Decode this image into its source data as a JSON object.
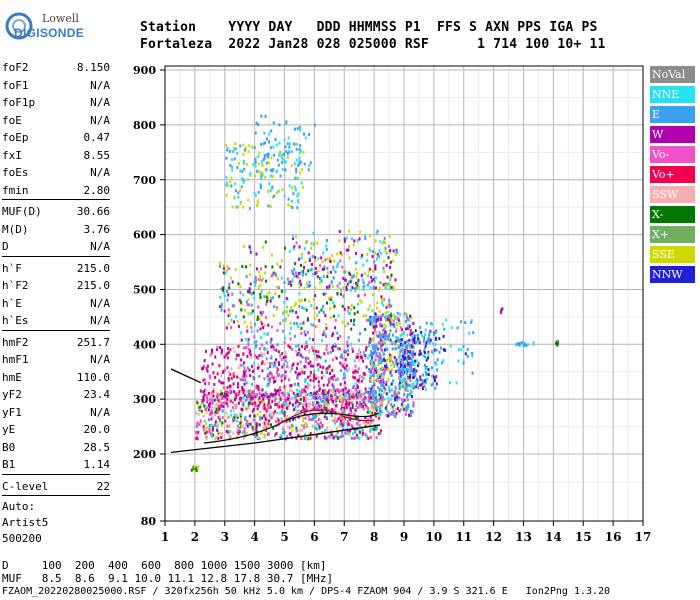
{
  "logo": {
    "line1": "Lowell",
    "line2": "DIGISONDE"
  },
  "header": {
    "line1": "Station    YYYY DAY   DDD HHMMSS P1  FFS S AXN PPS IGA PS",
    "line2": "Fortaleza  2022 Jan28 028 025000 RSF      1 714 100 10+ 11"
  },
  "params": {
    "g1": [
      [
        "foF2",
        "8.150"
      ],
      [
        "foF1",
        "N/A"
      ],
      [
        "foF1p",
        "N/A"
      ],
      [
        "foE",
        "N/A"
      ],
      [
        "foEp",
        "0.47"
      ],
      [
        "fxI",
        "8.55"
      ],
      [
        "foEs",
        "N/A"
      ],
      [
        "fmin",
        "2.80"
      ]
    ],
    "g2": [
      [
        "MUF(D)",
        "30.66"
      ],
      [
        "M(D)",
        "3.76"
      ],
      [
        "D",
        "N/A"
      ]
    ],
    "g3": [
      [
        "h`F",
        "215.0"
      ],
      [
        "h`F2",
        "215.0"
      ],
      [
        "h`E",
        "N/A"
      ],
      [
        "h`Es",
        "N/A"
      ]
    ],
    "g4": [
      [
        "hmF2",
        "251.7"
      ],
      [
        "hmF1",
        "N/A"
      ],
      [
        "hmE",
        "110.0"
      ],
      [
        "yF2",
        "23.4"
      ],
      [
        "yF1",
        "N/A"
      ],
      [
        "yE",
        "20.0"
      ],
      [
        "B0",
        "28.5"
      ],
      [
        "B1",
        "1.14"
      ]
    ],
    "g5": [
      [
        "C-level",
        "22"
      ]
    ],
    "auto": [
      "Auto:",
      "Artist5",
      "500200"
    ]
  },
  "legend": [
    {
      "label": "NoVal",
      "color": "#8c8c8c"
    },
    {
      "label": "NNE",
      "color": "#27e1f0"
    },
    {
      "label": "E",
      "color": "#3aa0f0"
    },
    {
      "label": "W",
      "color": "#b000b0"
    },
    {
      "label": "Vo-",
      "color": "#f050c8"
    },
    {
      "label": "Vo+",
      "color": "#f00050"
    },
    {
      "label": "SSW",
      "color": "#f4b0b0"
    },
    {
      "label": "X-",
      "color": "#007800"
    },
    {
      "label": "X+",
      "color": "#70b060"
    },
    {
      "label": "SSE",
      "color": "#d0d800"
    },
    {
      "label": "NNW",
      "color": "#2020d8"
    }
  ],
  "footer": {
    "d_line": "D     100  200  400  600  800 1000 1500 3000 [km]",
    "muf_line": "MUF   8.5  8.6  9.1 10.0 11.1 12.8 17.8 30.7 [MHz]",
    "file_line": "FZAOM_20220280025000.RSF / 320fx256h 50 kHz 5.0 km / DPS-4 FZAOM 904 / 3.9 S 321.6 E   Ion2Png 1.3.20"
  },
  "chart_data": {
    "type": "scatter",
    "x_ticks": [
      "1",
      "2",
      "3",
      "4",
      "5",
      "6",
      "7",
      "8",
      "9",
      "10",
      "11",
      "12",
      "13",
      "14",
      "15",
      "16",
      "17"
    ],
    "y_ticks": [
      "80",
      "200",
      "300",
      "400",
      "500",
      "600",
      "700",
      "800",
      "900"
    ],
    "xlim": [
      1,
      17
    ],
    "ylim": [
      80,
      900
    ],
    "grid": true
  }
}
